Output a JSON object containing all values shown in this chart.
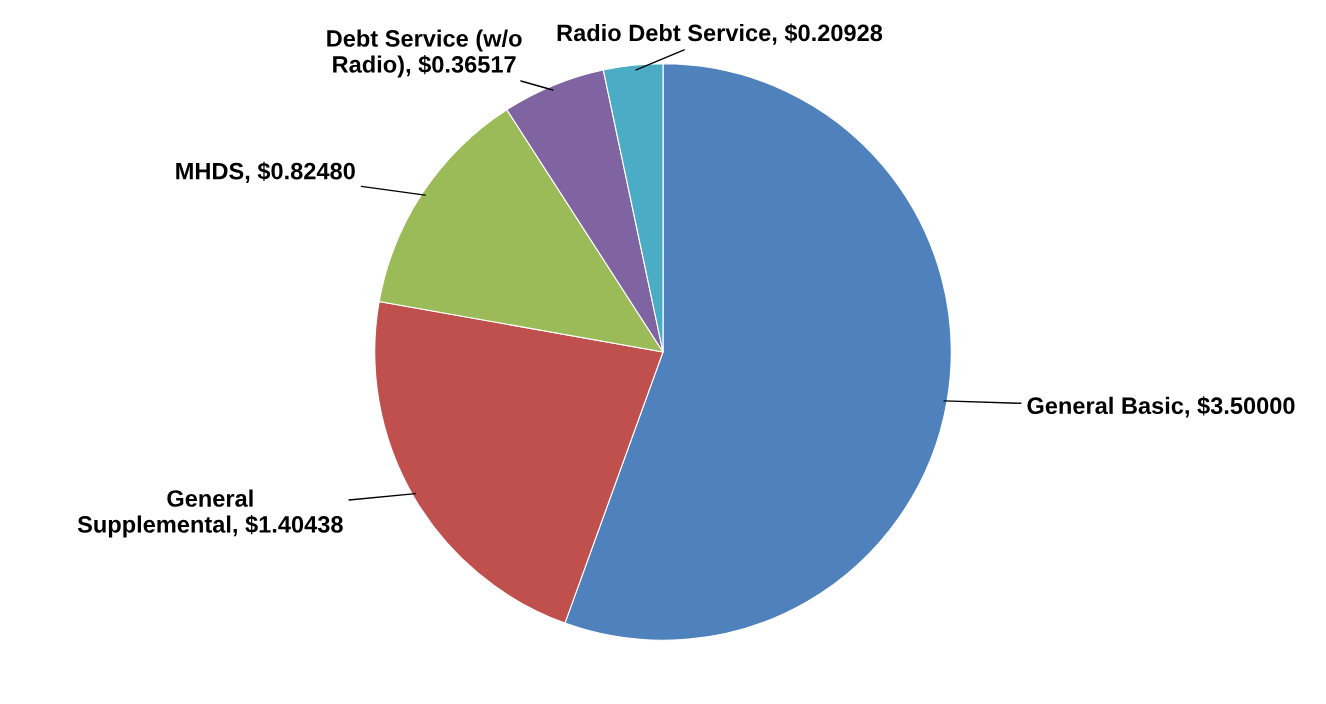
{
  "chart_data": {
    "type": "pie",
    "categories": [
      "General Basic",
      "General\nSupplemental",
      "MHDS",
      "Debt Service (w/o\nRadio)",
      "Radio Debt Service"
    ],
    "values": [
      3.5,
      1.40438,
      0.8248,
      0.36517,
      0.20928
    ],
    "value_labels": [
      "$3.50000",
      "$1.40438",
      "$0.82480",
      "$0.36517",
      "$0.20928"
    ],
    "colors": [
      "#4f81bd",
      "#c0504d",
      "#9bbb59",
      "#8064a2",
      "#4bacc6"
    ]
  }
}
